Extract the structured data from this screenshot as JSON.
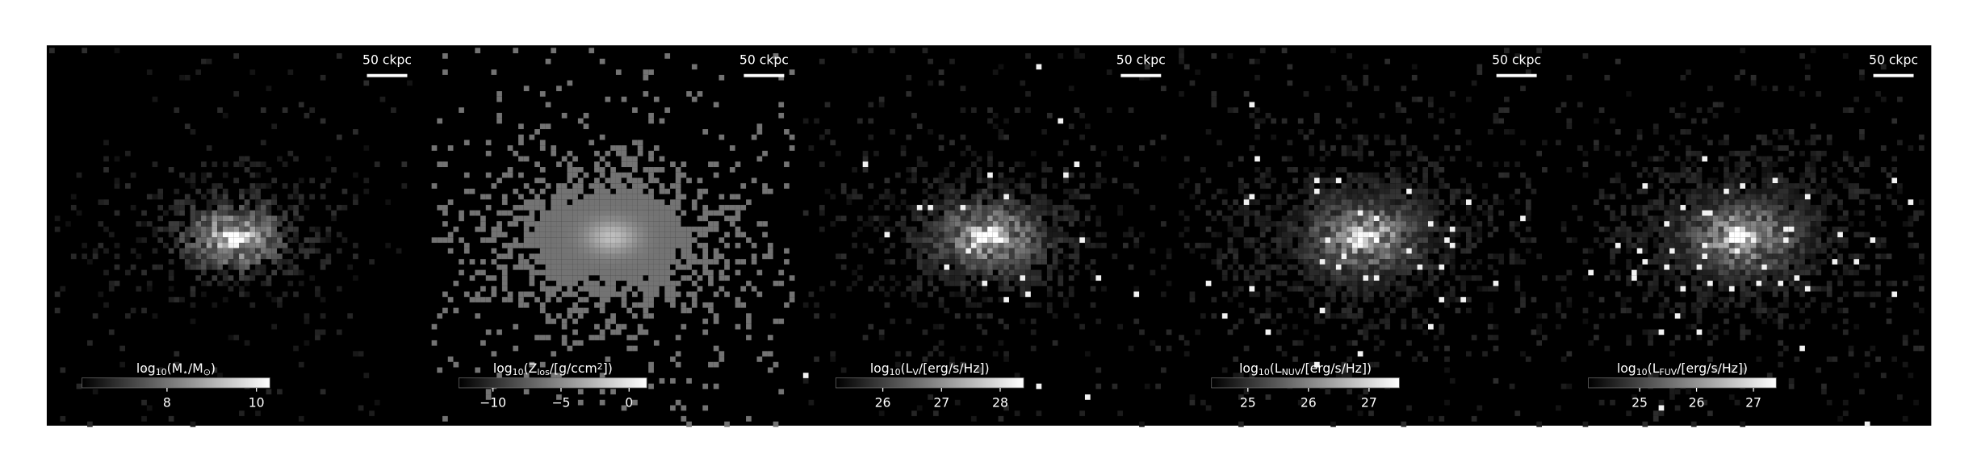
{
  "panels": [
    {
      "scale_bar": "50 ckpc",
      "colorbar": {
        "label": [
          {
            "t": "log"
          },
          {
            "t": "10",
            "pos": "sub"
          },
          {
            "t": "(M"
          },
          {
            "t": "⋆",
            "pos": "sub"
          },
          {
            "t": "/M"
          },
          {
            "t": "⊙",
            "pos": "sub"
          },
          {
            "t": ")"
          }
        ],
        "lim": [
          6.1,
          10.3
        ],
        "ticks": [
          8,
          10
        ]
      }
    },
    {
      "scale_bar": "50 ckpc",
      "colorbar": {
        "label": [
          {
            "t": "log"
          },
          {
            "t": "10",
            "pos": "sub"
          },
          {
            "t": "(Z"
          },
          {
            "t": "los",
            "pos": "sub"
          },
          {
            "t": "/[g/ccm"
          },
          {
            "t": "2",
            "pos": "sup"
          },
          {
            "t": "])"
          }
        ],
        "lim": [
          -12.5,
          1.3
        ],
        "ticks": [
          {
            "value": -10,
            "label": "−10"
          },
          {
            "value": -5,
            "label": "−5"
          },
          0
        ]
      }
    },
    {
      "scale_bar": "50 ckpc",
      "colorbar": {
        "label": [
          {
            "t": "log"
          },
          {
            "t": "10",
            "pos": "sub"
          },
          {
            "t": "(L"
          },
          {
            "t": "V",
            "pos": "sub"
          },
          {
            "t": "/[erg/s/Hz])"
          }
        ],
        "lim": [
          25.2,
          28.4
        ],
        "ticks": [
          26,
          27,
          28
        ]
      }
    },
    {
      "scale_bar": "50 ckpc",
      "colorbar": {
        "label": [
          {
            "t": "log"
          },
          {
            "t": "10",
            "pos": "sub"
          },
          {
            "t": "(L"
          },
          {
            "t": "NUV",
            "pos": "sub"
          },
          {
            "t": "/[erg/s/Hz])"
          }
        ],
        "lim": [
          24.4,
          27.5
        ],
        "ticks": [
          25,
          26,
          27
        ]
      }
    },
    {
      "scale_bar": "50 ckpc",
      "colorbar": {
        "label": [
          {
            "t": "log"
          },
          {
            "t": "10",
            "pos": "sub"
          },
          {
            "t": "(L"
          },
          {
            "t": "FUV",
            "pos": "sub"
          },
          {
            "t": "/[erg/s/Hz])"
          }
        ],
        "lim": [
          24.1,
          27.4
        ],
        "ticks": [
          25,
          26,
          27
        ]
      }
    }
  ]
}
